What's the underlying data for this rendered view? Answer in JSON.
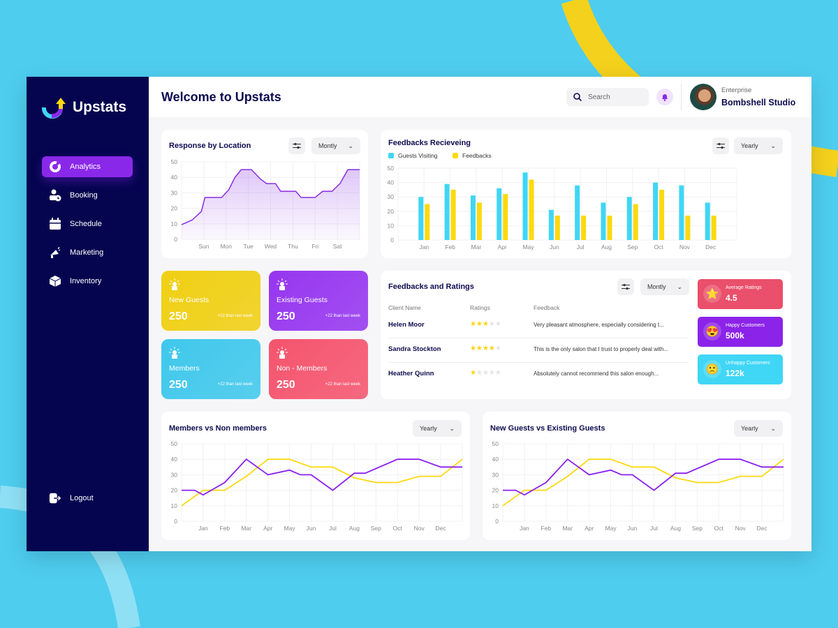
{
  "app": {
    "name": "Upstats",
    "title": "Welcome to Upstats"
  },
  "sidebar": {
    "items": [
      {
        "label": "Analytics",
        "icon": "pie-chart-icon",
        "active": true
      },
      {
        "label": "Booking",
        "icon": "user-clock-icon"
      },
      {
        "label": "Schedule",
        "icon": "calendar-icon"
      },
      {
        "label": "Marketing",
        "icon": "megaphone-icon"
      },
      {
        "label": "Inventory",
        "icon": "box-icon"
      }
    ],
    "logout": "Logout"
  },
  "header": {
    "search_placeholder": "Search",
    "account_type": "Enterprise",
    "account_name": "Bombshell Studio"
  },
  "response": {
    "title": "Response by Location",
    "period": "Montly"
  },
  "feedbacks": {
    "title": "Feedbacks Recieveing",
    "period": "Yearly",
    "legend": [
      "Guests Visiting",
      "Feedbacks"
    ]
  },
  "stats": [
    {
      "label": "New Guests",
      "value": "250",
      "delta": "+22 than last week",
      "color": "#f0cf12"
    },
    {
      "label": "Existing Guests",
      "value": "250",
      "delta": "+22 than last week",
      "color": "#9636f0"
    },
    {
      "label": "Members",
      "value": "250",
      "delta": "+22 than last week",
      "color": "#3fc8ec"
    },
    {
      "label": "Non - Members",
      "value": "250",
      "delta": "+22 than last week",
      "color": "#f5546d"
    }
  ],
  "ratings": {
    "title": "Feedbacks and Ratings",
    "period": "Montly",
    "columns": [
      "Client Name",
      "Ratings",
      "Feedback"
    ],
    "rows": [
      {
        "name": "Helen Moor",
        "stars": 3,
        "feedback": "Very pleasant atmosphere, especially considering t..."
      },
      {
        "name": "Sandra Stockton",
        "stars": 4,
        "feedback": "This is the only salon that I trust to properly deal with..."
      },
      {
        "name": "Heather Quinn",
        "stars": 1,
        "feedback": "Absolutely cannot recommend this salon enough..."
      }
    ]
  },
  "metrics": [
    {
      "label": "Average Ratings",
      "value": "4.5",
      "emoji": "⭐",
      "color": "#ea4f6b"
    },
    {
      "label": "Happy Customers",
      "value": "500k",
      "emoji": "😍",
      "color": "#8b24e8"
    },
    {
      "label": "Unhappy Customers",
      "value": "122k",
      "emoji": "🙁",
      "color": "#40d6f5"
    }
  ],
  "members": {
    "title": "Members vs Non members",
    "period": "Yearly"
  },
  "guests": {
    "title": "New Guests vs Existing Guests",
    "period": "Yearly"
  },
  "chart_data": [
    {
      "type": "area",
      "title": "Response by Location",
      "categories": [
        "Sun",
        "Mon",
        "Tue",
        "Wed",
        "Thu",
        "Fri",
        "Sat"
      ],
      "ylim": [
        0,
        50
      ],
      "yticks": [
        0,
        10,
        20,
        30,
        40,
        50
      ],
      "color": "#8a2be2",
      "x": [
        0,
        0.48,
        0.89,
        1.05,
        1.8,
        2.12,
        2.4,
        2.68,
        3.14,
        3.54,
        3.82,
        4.22,
        4.45,
        5.13,
        5.37,
        6,
        6.34,
        6.76,
        7.12,
        7.47,
        8
      ],
      "y": [
        9.5,
        12.5,
        18,
        27,
        27,
        32,
        40,
        45,
        45,
        39,
        36,
        36,
        31,
        31,
        27,
        27,
        31,
        31,
        36,
        45,
        45
      ]
    },
    {
      "type": "bar",
      "title": "Feedbacks Recieveing",
      "categories": [
        "Jan",
        "Feb",
        "Mar",
        "Apr",
        "May",
        "Jun",
        "Jul",
        "Aug",
        "Sep",
        "Oct",
        "Nov",
        "Dec"
      ],
      "ylim": [
        0,
        50
      ],
      "yticks": [
        0,
        10,
        20,
        30,
        40,
        50
      ],
      "series": [
        {
          "name": "Guests Visiting",
          "color": "#40d6f5",
          "values": [
            30,
            39,
            31,
            36,
            47,
            21,
            38,
            26,
            30,
            40,
            38,
            26
          ]
        },
        {
          "name": "Feedbacks",
          "color": "#fcd90f",
          "values": [
            25,
            35,
            26,
            32,
            42,
            17,
            17,
            17,
            25,
            35,
            17,
            17
          ]
        }
      ]
    },
    {
      "type": "line",
      "title": "Members vs Non members",
      "categories": [
        "Jan",
        "Feb",
        "Mar",
        "Apr",
        "May",
        "Jun",
        "Jul",
        "Aug",
        "Sep",
        "Oct",
        "Nov",
        "Dec"
      ],
      "ylim": [
        0,
        50
      ],
      "yticks": [
        0,
        10,
        20,
        30,
        40,
        50
      ],
      "series": [
        {
          "color": "#8a1ff0",
          "x": [
            0,
            0.6,
            1,
            2,
            3,
            4,
            5,
            5.5,
            6,
            7,
            8,
            8.5,
            10,
            11,
            12,
            13
          ],
          "y": [
            20,
            20,
            17,
            25,
            40,
            30,
            33,
            30,
            30,
            20,
            31,
            31,
            40,
            40,
            35,
            35
          ]
        },
        {
          "color": "#fcd90f",
          "x": [
            0,
            1,
            2,
            3,
            4,
            5,
            6,
            7,
            8,
            9,
            10,
            11,
            12,
            13
          ],
          "y": [
            10,
            20,
            20,
            29,
            40,
            40,
            35,
            35,
            28,
            25,
            25,
            29,
            29,
            40
          ]
        }
      ]
    },
    {
      "type": "line",
      "title": "New Guests vs Existing Guests",
      "categories": [
        "Jan",
        "Feb",
        "Mar",
        "Apr",
        "May",
        "Jun",
        "Jul",
        "Aug",
        "Sep",
        "Oct",
        "Nov",
        "Dec"
      ],
      "ylim": [
        0,
        50
      ],
      "yticks": [
        0,
        10,
        20,
        30,
        40,
        50
      ],
      "series": [
        {
          "color": "#8a1ff0",
          "x": [
            0,
            0.6,
            1,
            2,
            3,
            4,
            5,
            5.5,
            6,
            7,
            8,
            8.5,
            10,
            11,
            12,
            13
          ],
          "y": [
            20,
            20,
            17,
            25,
            40,
            30,
            33,
            30,
            30,
            20,
            31,
            31,
            40,
            40,
            35,
            35
          ]
        },
        {
          "color": "#fcd90f",
          "x": [
            0,
            1,
            2,
            3,
            4,
            5,
            6,
            7,
            8,
            9,
            10,
            11,
            12,
            13
          ],
          "y": [
            10,
            20,
            20,
            29,
            40,
            40,
            35,
            35,
            28,
            25,
            25,
            29,
            29,
            40
          ]
        }
      ]
    }
  ]
}
